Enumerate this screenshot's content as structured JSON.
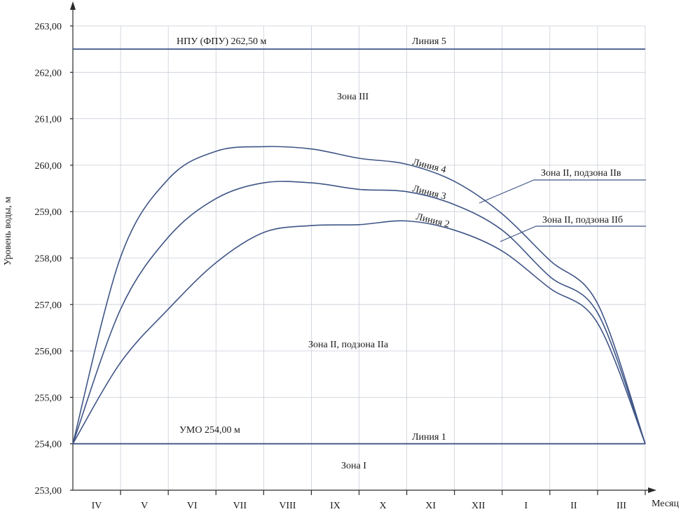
{
  "chart_data": {
    "type": "line",
    "ylabel": "Уровень воды, м",
    "xlabel": "Месяц",
    "ylim": [
      253.0,
      263.0
    ],
    "yticks": [
      "253,00",
      "254,00",
      "255,00",
      "256,00",
      "257,00",
      "258,00",
      "259,00",
      "260,00",
      "261,00",
      "262,00",
      "263,00"
    ],
    "categories": [
      "IV",
      "V",
      "VI",
      "VII",
      "VIII",
      "IX",
      "X",
      "XI",
      "XII",
      "I",
      "II",
      "III"
    ],
    "grid": true,
    "series": [
      {
        "name": "Линия 1",
        "x": [
          0,
          12
        ],
        "values": [
          254.0,
          254.0
        ]
      },
      {
        "name": "Линия 2",
        "x": [
          0,
          1,
          2,
          3,
          4,
          5,
          6,
          7,
          8,
          9,
          10,
          11,
          12
        ],
        "values": [
          254.0,
          255.75,
          256.9,
          257.9,
          258.55,
          258.7,
          258.72,
          258.8,
          258.6,
          258.15,
          257.35,
          256.6,
          254.0
        ]
      },
      {
        "name": "Линия 3",
        "x": [
          0,
          1,
          2,
          3,
          4,
          5,
          6,
          7,
          8,
          9,
          10,
          11,
          12
        ],
        "values": [
          254.0,
          256.9,
          258.45,
          259.28,
          259.62,
          259.62,
          259.48,
          259.43,
          259.15,
          258.6,
          257.6,
          256.82,
          254.0
        ]
      },
      {
        "name": "Линия 4",
        "x": [
          0,
          1,
          2,
          3,
          4,
          5,
          6,
          7,
          8,
          9,
          10,
          11,
          12
        ],
        "values": [
          254.0,
          258.02,
          259.7,
          260.3,
          260.4,
          260.35,
          260.15,
          260.02,
          259.65,
          258.95,
          257.95,
          257.02,
          254.0
        ]
      },
      {
        "name": "Линия 5",
        "x": [
          0,
          12
        ],
        "values": [
          262.5,
          262.5
        ]
      }
    ],
    "annotations": {
      "npu": "НПУ (ФПУ) 262,50 м",
      "umo": "УМО 254,00 м",
      "zone3": "Зона III",
      "zone2a": "Зона II, подзона IIа",
      "zone2b": "Зона II, подзона IIб",
      "zone2v": "Зона II, подзона IIв",
      "zone1": "Зона I"
    }
  }
}
